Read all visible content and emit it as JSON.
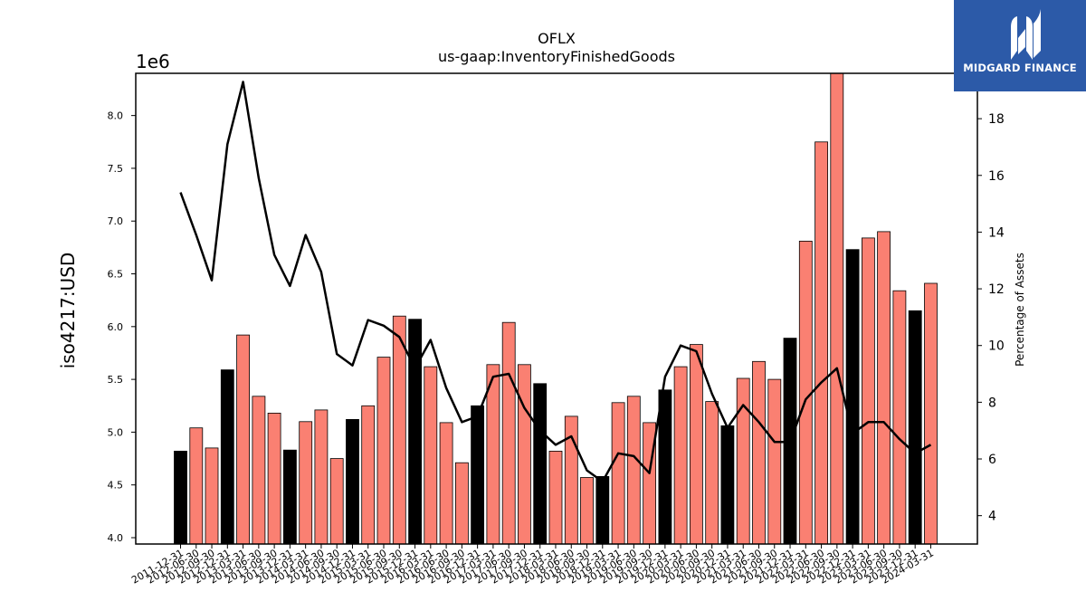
{
  "logo": {
    "name": "MIDGARD FINANCE",
    "icon": "midgard-m-logo-icon",
    "background": "#2c5aa8"
  },
  "chart_data": {
    "type": "bar",
    "title": "OFLX",
    "subtitle": "us-gaap:InventoryFinishedGoods",
    "ylabel": "iso4217:USD",
    "y_offset_text": "1e6",
    "y2label": "Percentage of Assets",
    "ylim": [
      3940000,
      8400000
    ],
    "y2lim": [
      3,
      19.6
    ],
    "yticks": [
      "4.0",
      "4.5",
      "5.0",
      "5.5",
      "6.0",
      "6.5",
      "7.0",
      "7.5",
      "8.0"
    ],
    "y2ticks": [
      "4",
      "6",
      "8",
      "10",
      "12",
      "14",
      "16",
      "18"
    ],
    "grid": false,
    "colors": {
      "quarter_bar": "#fa8072",
      "annual_bar": "#000000",
      "line": "#000000"
    },
    "categories": [
      "2011-12-31",
      "2012-06-30",
      "2012-09-30",
      "2012-12-31",
      "2013-03-31",
      "2013-06-30",
      "2013-09-30",
      "2013-12-31",
      "2014-03-31",
      "2014-06-30",
      "2014-09-30",
      "2014-12-31",
      "2015-03-31",
      "2015-06-30",
      "2015-09-30",
      "2015-12-31",
      "2016-03-31",
      "2016-06-30",
      "2016-09-30",
      "2016-12-31",
      "2017-03-31",
      "2017-06-30",
      "2017-09-30",
      "2017-12-31",
      "2018-03-31",
      "2018-06-30",
      "2018-09-30",
      "2018-12-31",
      "2019-03-31",
      "2019-06-30",
      "2019-09-30",
      "2019-12-31",
      "2020-03-31",
      "2020-06-30",
      "2020-09-30",
      "2020-12-31",
      "2021-03-31",
      "2021-06-30",
      "2021-09-30",
      "2021-12-31",
      "2022-03-31",
      "2022-06-30",
      "2022-09-30",
      "2022-12-31",
      "2023-03-31",
      "2023-06-30",
      "2023-09-30",
      "2023-12-31",
      "2024-03-31"
    ],
    "series": [
      {
        "kind": "bar",
        "values": [
          4820000,
          5040000,
          4850000,
          5590000,
          5920000,
          5340000,
          5180000,
          4830000,
          5100000,
          5210000,
          4750000,
          5120000,
          5250000,
          5710000,
          6100000,
          6070000,
          5620000,
          5090000,
          4710000,
          5250000,
          5640000,
          6040000,
          5640000,
          5460000,
          4820000,
          5150000,
          4570000,
          4580000,
          5280000,
          5340000,
          5090000,
          5400000,
          5620000,
          5830000,
          5290000,
          5060000,
          5510000,
          5670000,
          5500000,
          5890000,
          6810000,
          7750000,
          8400000,
          6730000,
          6840000,
          6900000,
          6340000,
          6150000,
          6410000
        ],
        "annual": [
          true,
          false,
          false,
          true,
          false,
          false,
          false,
          true,
          false,
          false,
          false,
          true,
          false,
          false,
          false,
          true,
          false,
          false,
          false,
          true,
          false,
          false,
          false,
          true,
          false,
          false,
          false,
          true,
          false,
          false,
          false,
          true,
          false,
          false,
          false,
          true,
          false,
          false,
          false,
          true,
          false,
          false,
          false,
          true,
          false,
          false,
          false,
          true,
          false
        ]
      },
      {
        "kind": "line",
        "axis": "right",
        "values": [
          15.4,
          13.9,
          12.3,
          17.1,
          19.3,
          15.9,
          13.2,
          12.1,
          13.9,
          12.6,
          9.7,
          9.3,
          10.9,
          10.7,
          10.3,
          9.2,
          10.2,
          8.5,
          7.3,
          7.5,
          8.9,
          9.0,
          7.8,
          7.0,
          6.5,
          6.8,
          5.6,
          5.2,
          6.2,
          6.1,
          5.5,
          8.9,
          10.0,
          9.8,
          8.3,
          7.1,
          7.9,
          7.3,
          6.6,
          6.6,
          8.1,
          8.7,
          9.2,
          6.9,
          7.3,
          7.3,
          6.7,
          6.2,
          6.5
        ]
      }
    ]
  }
}
